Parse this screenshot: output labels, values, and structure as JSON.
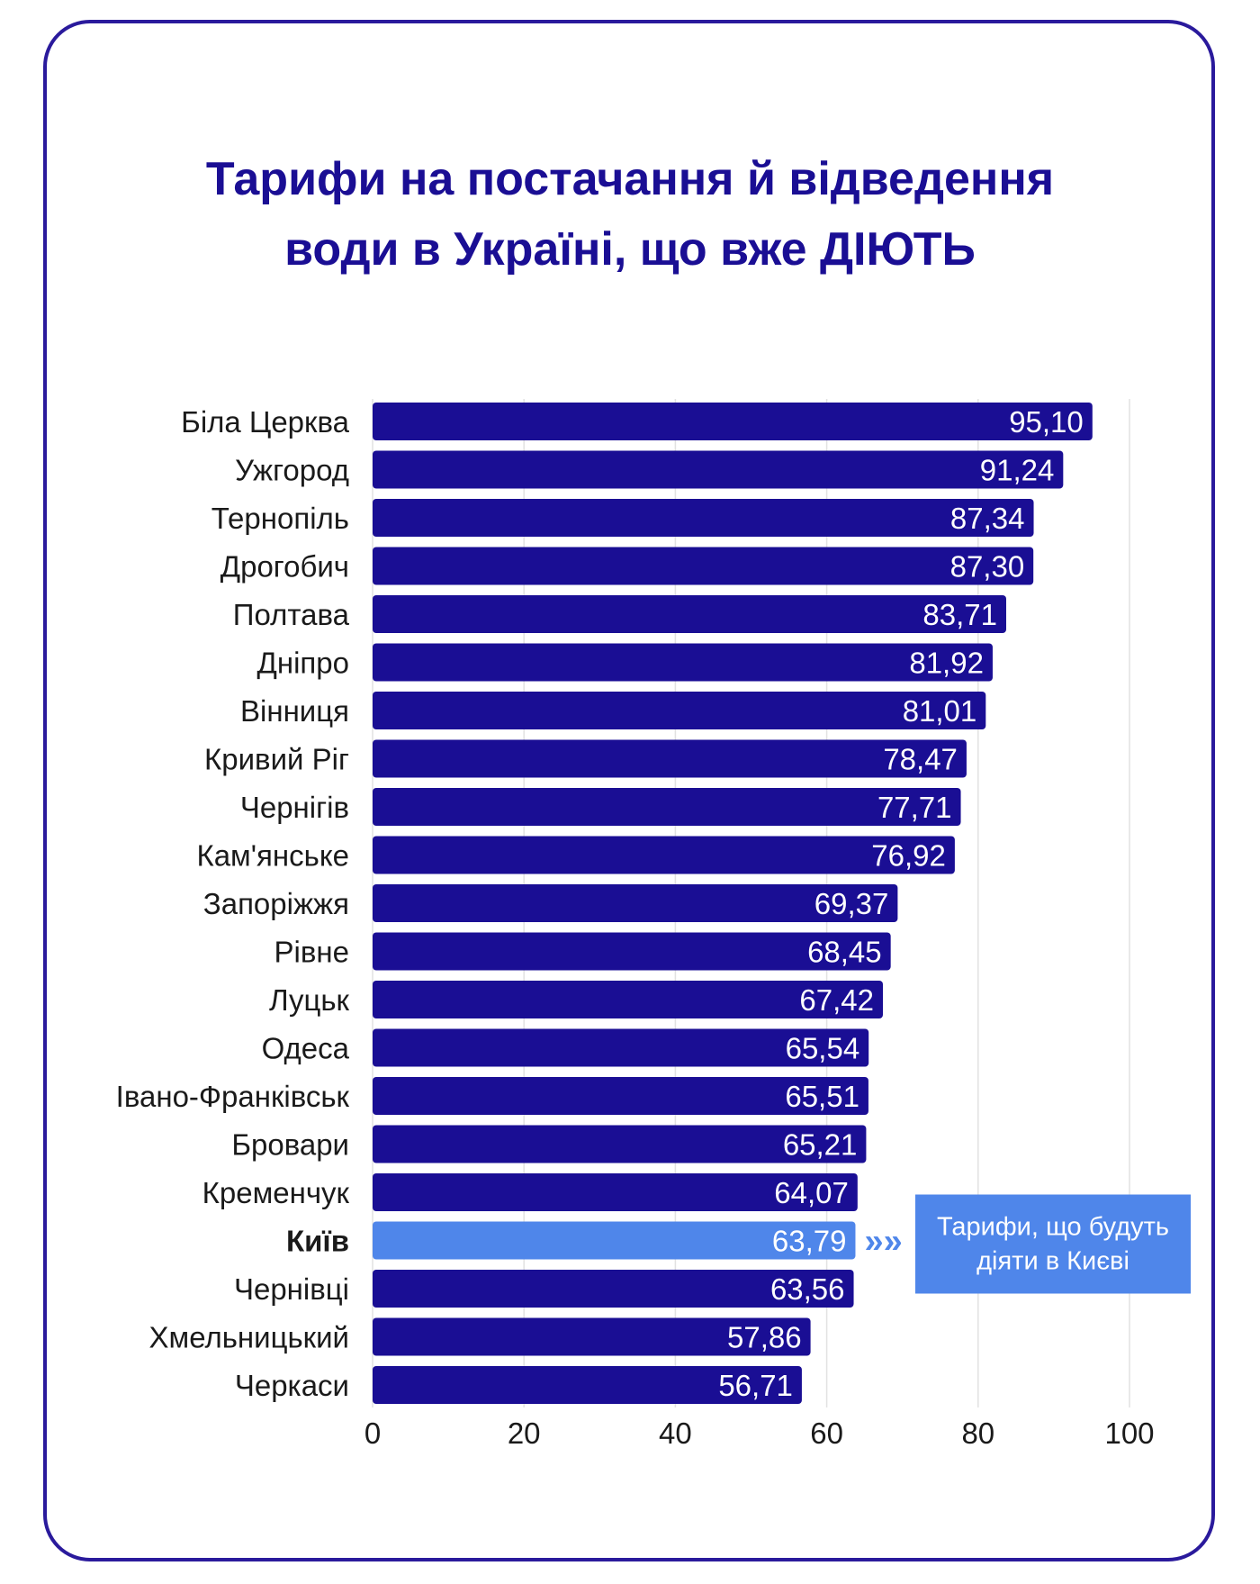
{
  "title": {
    "line1": "Тарифи на постачання й відведення",
    "line2": "води в Україні, що вже ДІЮТЬ"
  },
  "colors": {
    "bar": "#1a0e94",
    "highlight": "#4f86ea",
    "border": "#2a1a9c",
    "grid": "#e2e2e2"
  },
  "chart_data": {
    "type": "bar",
    "orientation": "horizontal",
    "title": "Тарифи на постачання й відведення води в Україні, що вже ДІЮТЬ",
    "categories": [
      "Біла Церква",
      "Ужгород",
      "Тернопіль",
      "Дрогобич",
      "Полтава",
      "Дніпро",
      "Вінниця",
      "Кривий Ріг",
      "Чернігів",
      "Кам'янське",
      "Запоріжжя",
      "Рівне",
      "Луцьк",
      "Одеса",
      "Івано-Франківськ",
      "Бровари",
      "Кременчук",
      "Київ",
      "Чернівці",
      "Хмельницький",
      "Черкаси"
    ],
    "values": [
      95.1,
      91.24,
      87.34,
      87.3,
      83.71,
      81.92,
      81.01,
      78.47,
      77.71,
      76.92,
      69.37,
      68.45,
      67.42,
      65.54,
      65.51,
      65.21,
      64.07,
      63.79,
      63.56,
      57.86,
      56.71
    ],
    "value_labels": [
      "95,10",
      "91,24",
      "87,34",
      "87,30",
      "83,71",
      "81,92",
      "81,01",
      "78,47",
      "77,71",
      "76,92",
      "69,37",
      "68,45",
      "67,42",
      "65,54",
      "65,51",
      "65,21",
      "64,07",
      "63,79",
      "63,56",
      "57,86",
      "56,71"
    ],
    "highlight_category": "Київ",
    "xlim": [
      0,
      100
    ],
    "xticks": [
      0,
      20,
      40,
      60,
      80,
      100
    ],
    "grid": true,
    "xlabel": "",
    "ylabel": "",
    "annotation": {
      "arrow": "»»",
      "lines": [
        "Тарифи, що будуть",
        "діяти в Києві"
      ]
    }
  }
}
